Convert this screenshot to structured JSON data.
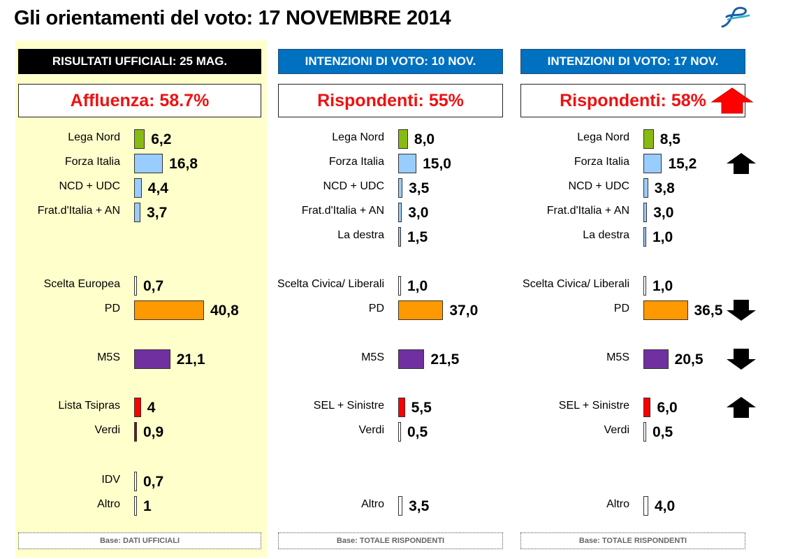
{
  "title": "Gli orientamenti del voto: 17 NOVEMBRE 2014",
  "colors": {
    "lega": "#88bb11",
    "centrodestra": "#99ccff",
    "pd": "#ff9900",
    "m5s": "#7030a0",
    "sinistra": "#ff0000",
    "verdi": "#990000",
    "altro": "#ffffff",
    "rispondenti_up": "#ff0000",
    "arrow": "#000000",
    "header_blue": "#0070c0",
    "official_bg": "#ffffcc"
  },
  "chart_data": [
    {
      "type": "bar",
      "header": "RISULTATI UFFICIALI:  25 MAG.",
      "key_stat": "Affluenza: 58.7%",
      "base": "Base: DATI UFFICIALI",
      "unit": "%",
      "categories": [
        "Lega Nord",
        "Forza Italia",
        "NCD + UDC",
        "Frat.d'Italia + AN",
        "Scelta Europea",
        "PD",
        "M5S",
        "Lista Tsipras",
        "Verdi",
        "IDV",
        "Altro"
      ],
      "values": [
        6.2,
        16.8,
        4.4,
        3.7,
        0.7,
        40.8,
        21.1,
        4,
        0.9,
        0.7,
        1
      ],
      "labels": [
        "6,2",
        "16,8",
        "4,4",
        "3,7",
        "0,7",
        "40,8",
        "21,1",
        "4",
        "0,9",
        "0,7",
        "1"
      ],
      "color_keys": [
        "lega",
        "centrodestra",
        "centrodestra",
        "centrodestra",
        "altro",
        "pd",
        "m5s",
        "sinistra",
        "verdi",
        "altro",
        "altro"
      ],
      "trends": [
        "",
        "",
        "",
        "",
        "",
        "",
        "",
        "",
        "",
        "",
        ""
      ]
    },
    {
      "type": "bar",
      "header": "INTENZIONI DI VOTO:  10 NOV.",
      "key_stat": "Rispondenti: 55%",
      "base": "Base: TOTALE RISPONDENTI",
      "unit": "%",
      "categories": [
        "Lega Nord",
        "Forza Italia",
        "NCD + UDC",
        "Frat.d'Italia + AN",
        "La destra",
        "Scelta Civica/ Liberali",
        "PD",
        "M5S",
        "SEL + Sinistre",
        "Verdi",
        "Altro"
      ],
      "values": [
        8.0,
        15.0,
        3.5,
        3.0,
        1.5,
        1.0,
        37.0,
        21.5,
        5.5,
        0.5,
        3.5
      ],
      "labels": [
        "8,0",
        "15,0",
        "3,5",
        "3,0",
        "1,5",
        "1,0",
        "37,0",
        "21,5",
        "5,5",
        "0,5",
        "3,5"
      ],
      "color_keys": [
        "lega",
        "centrodestra",
        "centrodestra",
        "centrodestra",
        "centrodestra",
        "altro",
        "pd",
        "m5s",
        "sinistra",
        "altro",
        "altro"
      ],
      "trends": [
        "",
        "",
        "",
        "",
        "",
        "",
        "",
        "",
        "",
        "",
        ""
      ]
    },
    {
      "type": "bar",
      "header": "INTENZIONI DI VOTO:  17 NOV.",
      "key_stat": "Rispondenti: 58%",
      "key_stat_trend": "up",
      "base": "Base: TOTALE RISPONDENTI",
      "unit": "%",
      "categories": [
        "Lega Nord",
        "Forza Italia",
        "NCD + UDC",
        "Frat.d'Italia + AN",
        "La destra",
        "Scelta Civica/ Liberali",
        "PD",
        "M5S",
        "SEL + Sinistre",
        "Verdi",
        "Altro"
      ],
      "values": [
        8.5,
        15.2,
        3.8,
        3.0,
        1.0,
        1.0,
        36.5,
        20.5,
        6.0,
        0.5,
        4.0
      ],
      "labels": [
        "8,5",
        "15,2",
        "3,8",
        "3,0",
        "1,0",
        "1,0",
        "36,5",
        "20,5",
        "6,0",
        "0,5",
        "4,0"
      ],
      "color_keys": [
        "lega",
        "centrodestra",
        "centrodestra",
        "centrodestra",
        "centrodestra",
        "altro",
        "pd",
        "m5s",
        "sinistra",
        "altro",
        "altro"
      ],
      "trends": [
        "",
        "up",
        "",
        "",
        "",
        "",
        "down",
        "down",
        "up",
        "",
        ""
      ]
    }
  ]
}
